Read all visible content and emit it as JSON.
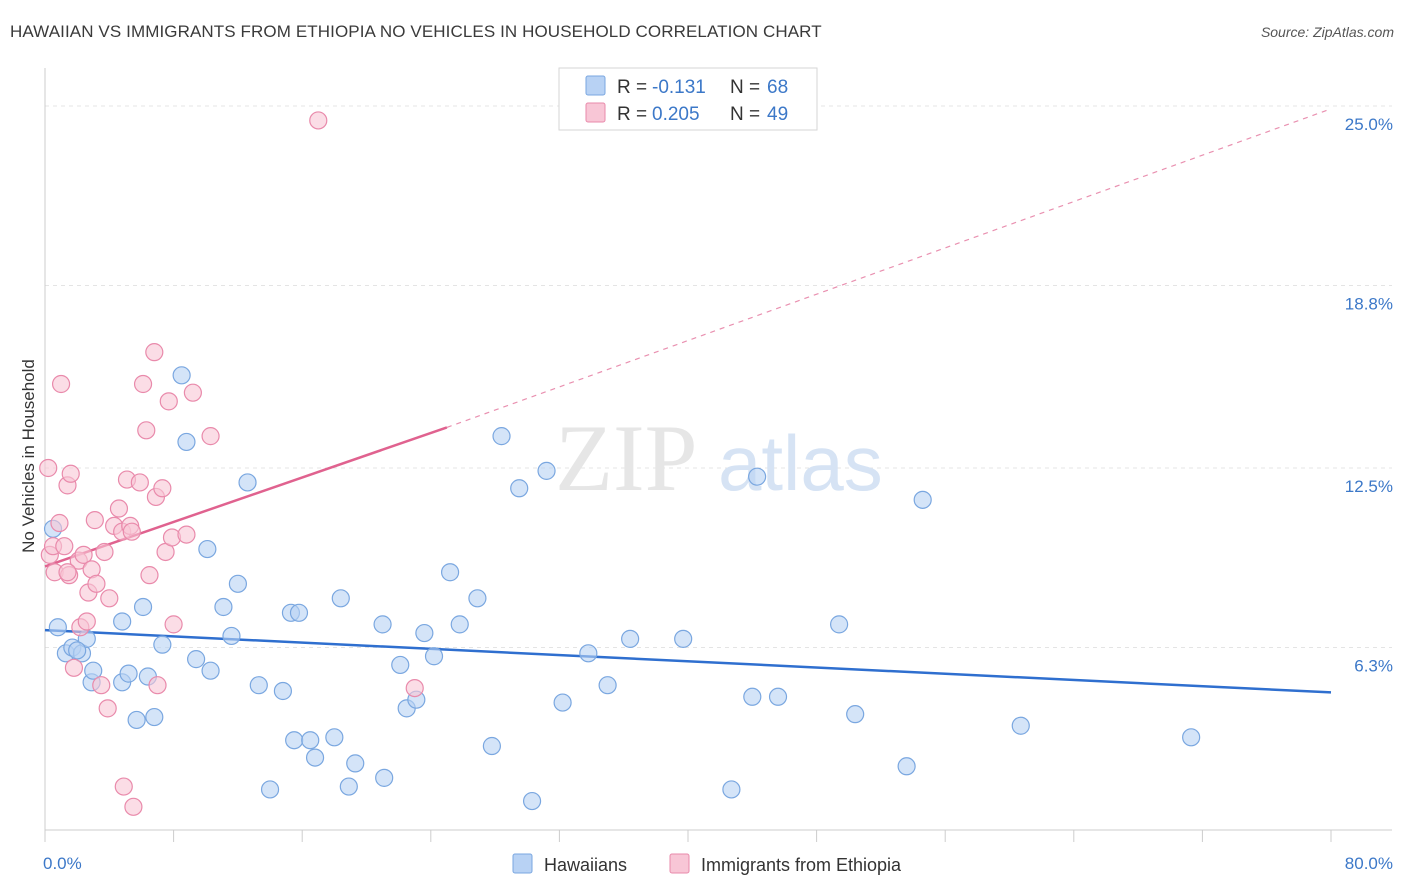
{
  "title": "HAWAIIAN VS IMMIGRANTS FROM ETHIOPIA NO VEHICLES IN HOUSEHOLD CORRELATION CHART",
  "source": "Source: ZipAtlas.com",
  "watermark": {
    "zip": "ZIP",
    "atlas": "atlas"
  },
  "legend": {
    "r_label": "R =",
    "n_label": "N =",
    "rows": [
      {
        "r": "-0.131",
        "n": "68",
        "fill": "#b8d2f4",
        "stroke": "#7aa7e0"
      },
      {
        "r": "0.205",
        "n": "49",
        "fill": "#f8c6d6",
        "stroke": "#e98aab"
      }
    ]
  },
  "chart_data": {
    "type": "scatter",
    "title": "HAWAIIAN VS IMMIGRANTS FROM ETHIOPIA NO VEHICLES IN HOUSEHOLD CORRELATION CHART",
    "xlabel": "",
    "ylabel": "No Vehicles in Household",
    "xlim": [
      0,
      80
    ],
    "ylim": [
      0,
      26
    ],
    "x_tick_labels": [
      "0.0%",
      "80.0%"
    ],
    "y_ticks": [
      6.3,
      12.5,
      18.8,
      25.0
    ],
    "y_tick_labels": [
      "6.3%",
      "12.5%",
      "18.8%",
      "25.0%"
    ],
    "grid": true,
    "legend_position": "top-center",
    "series": [
      {
        "name": "Hawaiians",
        "color": "#7aa7e0",
        "fill": "#b8d2f4",
        "trend": {
          "x0": 0,
          "y0": 6.9,
          "x1": 80,
          "y1": 4.75,
          "color": "#2f6fcf"
        },
        "points": [
          [
            0.5,
            10.4
          ],
          [
            0.8,
            7.0
          ],
          [
            1.3,
            6.1
          ],
          [
            1.7,
            6.3
          ],
          [
            2.3,
            6.1
          ],
          [
            2.6,
            6.6
          ],
          [
            2.9,
            5.1
          ],
          [
            3.0,
            5.5
          ],
          [
            4.8,
            5.1
          ],
          [
            4.8,
            7.2
          ],
          [
            5.2,
            5.4
          ],
          [
            5.7,
            3.8
          ],
          [
            6.1,
            7.7
          ],
          [
            6.4,
            5.3
          ],
          [
            6.8,
            3.9
          ],
          [
            7.3,
            6.4
          ],
          [
            8.5,
            15.7
          ],
          [
            8.8,
            13.4
          ],
          [
            9.4,
            5.9
          ],
          [
            10.1,
            9.7
          ],
          [
            10.3,
            5.5
          ],
          [
            11.1,
            7.7
          ],
          [
            11.6,
            6.7
          ],
          [
            12.0,
            8.5
          ],
          [
            12.6,
            12.0
          ],
          [
            13.3,
            5.0
          ],
          [
            14.8,
            4.8
          ],
          [
            14.0,
            1.4
          ],
          [
            15.3,
            7.5
          ],
          [
            15.8,
            7.5
          ],
          [
            15.5,
            3.1
          ],
          [
            16.5,
            3.1
          ],
          [
            16.8,
            2.5
          ],
          [
            18.0,
            3.2
          ],
          [
            18.4,
            8.0
          ],
          [
            18.9,
            1.5
          ],
          [
            19.3,
            2.3
          ],
          [
            21.0,
            7.1
          ],
          [
            21.1,
            1.8
          ],
          [
            22.1,
            5.7
          ],
          [
            22.5,
            4.2
          ],
          [
            23.1,
            4.5
          ],
          [
            23.6,
            6.8
          ],
          [
            24.2,
            6.0
          ],
          [
            25.2,
            8.9
          ],
          [
            25.8,
            7.1
          ],
          [
            26.9,
            8.0
          ],
          [
            27.8,
            2.9
          ],
          [
            28.4,
            13.6
          ],
          [
            29.5,
            11.8
          ],
          [
            30.3,
            1.0
          ],
          [
            31.2,
            12.4
          ],
          [
            32.2,
            4.4
          ],
          [
            33.8,
            6.1
          ],
          [
            35.0,
            5.0
          ],
          [
            36.4,
            6.6
          ],
          [
            39.7,
            6.6
          ],
          [
            42.7,
            1.4
          ],
          [
            44.0,
            4.6
          ],
          [
            44.3,
            12.2
          ],
          [
            45.6,
            4.6
          ],
          [
            49.4,
            7.1
          ],
          [
            50.4,
            4.0
          ],
          [
            53.6,
            2.2
          ],
          [
            54.6,
            11.4
          ],
          [
            60.7,
            3.6
          ],
          [
            71.3,
            3.2
          ],
          [
            2.0,
            6.2
          ]
        ]
      },
      {
        "name": "Immigrants from Ethiopia",
        "color": "#e98aab",
        "fill": "#f8c6d6",
        "trend": {
          "x0": 0,
          "y0": 9.1,
          "x1": 25,
          "y1": 13.9,
          "color": "#e0628f",
          "dash_to": {
            "x": 80,
            "y": 24.9
          }
        },
        "points": [
          [
            0.2,
            12.5
          ],
          [
            0.3,
            9.5
          ],
          [
            0.5,
            9.8
          ],
          [
            0.6,
            8.9
          ],
          [
            0.9,
            10.6
          ],
          [
            1.0,
            15.4
          ],
          [
            1.2,
            9.8
          ],
          [
            1.4,
            11.9
          ],
          [
            1.5,
            8.8
          ],
          [
            1.6,
            12.3
          ],
          [
            1.8,
            5.6
          ],
          [
            2.1,
            9.3
          ],
          [
            2.2,
            7.0
          ],
          [
            2.4,
            9.5
          ],
          [
            2.6,
            7.2
          ],
          [
            2.7,
            8.2
          ],
          [
            2.9,
            9.0
          ],
          [
            3.1,
            10.7
          ],
          [
            3.2,
            8.5
          ],
          [
            3.5,
            5.0
          ],
          [
            3.7,
            9.6
          ],
          [
            3.9,
            4.2
          ],
          [
            4.0,
            8.0
          ],
          [
            4.3,
            10.5
          ],
          [
            4.6,
            11.1
          ],
          [
            4.8,
            10.3
          ],
          [
            4.9,
            1.5
          ],
          [
            5.1,
            12.1
          ],
          [
            5.3,
            10.5
          ],
          [
            5.4,
            10.3
          ],
          [
            5.5,
            0.8
          ],
          [
            5.9,
            12.0
          ],
          [
            6.1,
            15.4
          ],
          [
            6.3,
            13.8
          ],
          [
            6.5,
            8.8
          ],
          [
            6.8,
            16.5
          ],
          [
            6.9,
            11.5
          ],
          [
            7.0,
            5.0
          ],
          [
            7.3,
            11.8
          ],
          [
            7.5,
            9.6
          ],
          [
            7.7,
            14.8
          ],
          [
            7.9,
            10.1
          ],
          [
            8.0,
            7.1
          ],
          [
            8.8,
            10.2
          ],
          [
            9.2,
            15.1
          ],
          [
            10.3,
            13.6
          ],
          [
            17.0,
            24.5
          ],
          [
            23.0,
            4.9
          ],
          [
            1.4,
            8.9
          ]
        ]
      }
    ]
  }
}
